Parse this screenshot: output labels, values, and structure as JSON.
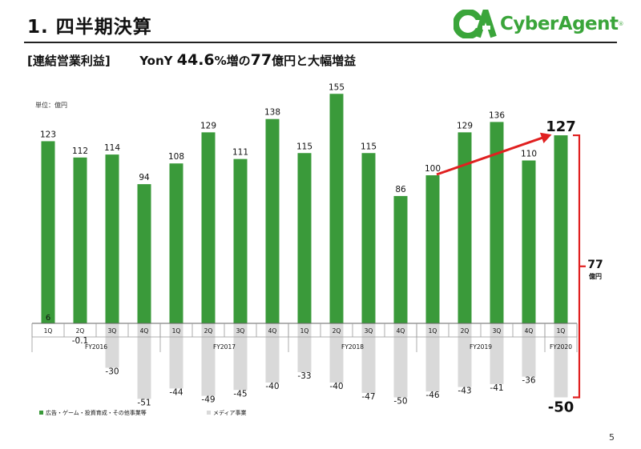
{
  "header": {
    "title": "1. 四半期決算",
    "subtitle_bracket": "[連結営業利益]",
    "subtitle_lead": "YonY ",
    "subtitle_pct": "44.6",
    "subtitle_pct_suffix": "%増の",
    "subtitle_amount": "77",
    "subtitle_tail": "億円と大幅増益",
    "page_number": "5"
  },
  "logo": {
    "mark": "CA",
    "name": "CyberAgent",
    "reg": "®",
    "green": "#3aa53a"
  },
  "chart_data": {
    "type": "bar",
    "unit": "単位：億円",
    "quarters": [
      "1Q",
      "2Q",
      "3Q",
      "4Q",
      "1Q",
      "2Q",
      "3Q",
      "4Q",
      "1Q",
      "2Q",
      "3Q",
      "4Q",
      "1Q",
      "2Q",
      "3Q",
      "4Q",
      "1Q"
    ],
    "fiscal_years": [
      {
        "label": "FY2016",
        "start": 0,
        "end": 3
      },
      {
        "label": "FY2017",
        "start": 4,
        "end": 7
      },
      {
        "label": "FY2018",
        "start": 8,
        "end": 11
      },
      {
        "label": "FY2019",
        "start": 12,
        "end": 15
      },
      {
        "label": "FY2020",
        "start": 16,
        "end": 16
      }
    ],
    "series": [
      {
        "name": "広告・ゲーム・投資育成・その他事業等",
        "color": "#3a9a3a",
        "values": [
          123,
          112,
          114,
          94,
          108,
          129,
          111,
          138,
          115,
          155,
          115,
          86,
          100,
          129,
          136,
          110,
          127
        ],
        "labels": [
          "123",
          "112",
          "114",
          "94",
          "108",
          "129",
          "111",
          "138",
          "115",
          "155",
          "115",
          "86",
          "100",
          "129",
          "136",
          "110",
          "127"
        ]
      },
      {
        "name": "メディア事業",
        "color": "#d9d9d9",
        "values": [
          6,
          -0.1,
          -30,
          -51,
          -44,
          -49,
          -45,
          -40,
          -33,
          -40,
          -47,
          -50,
          -46,
          -43,
          -41,
          -36,
          -50
        ],
        "labels": [
          "6",
          "-0.1",
          "-30",
          "-51",
          "-44",
          "-49",
          "-45",
          "-40",
          "-33",
          "-40",
          "-47",
          "-50",
          "-46",
          "-43",
          "-41",
          "-36",
          "-50"
        ]
      }
    ],
    "annotation": {
      "value": "77",
      "unit": "億円",
      "from_index": 12,
      "to_index": 16,
      "arrow_color": "#e02020"
    }
  }
}
